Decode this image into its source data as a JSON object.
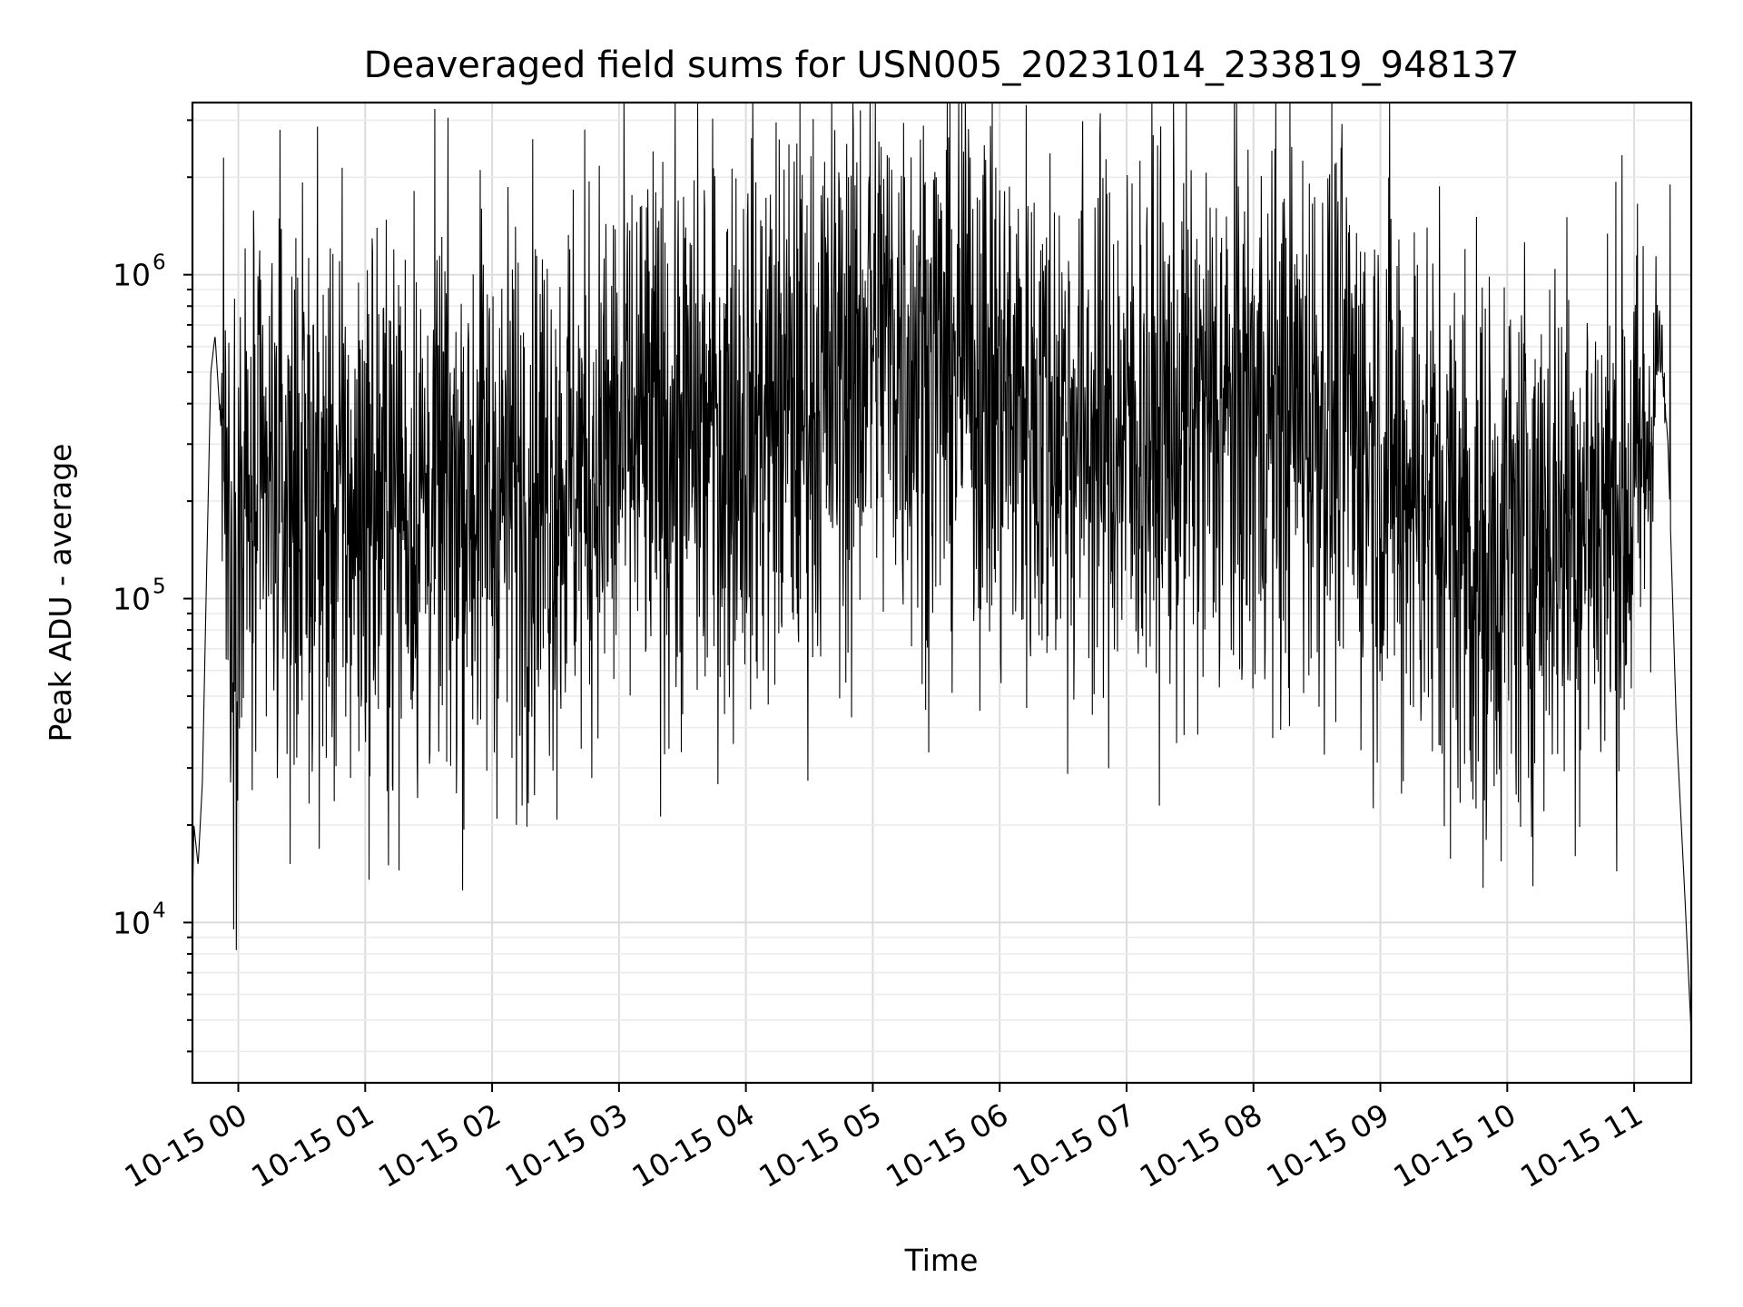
{
  "chart_data": {
    "type": "line",
    "title": "Deaveraged field sums for USN005_20231014_233819_948137",
    "xlabel": "Time",
    "ylabel": "Peak ADU - average",
    "yscale": "log",
    "ylim": [
      3200,
      3400000
    ],
    "xlim": [
      "2023-10-14T23:38:19",
      "2023-10-15T11:27:00"
    ],
    "x_ticks": [
      {
        "t": "2023-10-15T00:00:00",
        "label": "10-15 00"
      },
      {
        "t": "2023-10-15T01:00:00",
        "label": "10-15 01"
      },
      {
        "t": "2023-10-15T02:00:00",
        "label": "10-15 02"
      },
      {
        "t": "2023-10-15T03:00:00",
        "label": "10-15 03"
      },
      {
        "t": "2023-10-15T04:00:00",
        "label": "10-15 04"
      },
      {
        "t": "2023-10-15T05:00:00",
        "label": "10-15 05"
      },
      {
        "t": "2023-10-15T06:00:00",
        "label": "10-15 06"
      },
      {
        "t": "2023-10-15T07:00:00",
        "label": "10-15 07"
      },
      {
        "t": "2023-10-15T08:00:00",
        "label": "10-15 08"
      },
      {
        "t": "2023-10-15T09:00:00",
        "label": "10-15 09"
      },
      {
        "t": "2023-10-15T10:00:00",
        "label": "10-15 10"
      },
      {
        "t": "2023-10-15T11:00:00",
        "label": "10-15 11"
      }
    ],
    "y_ticks": [
      {
        "value": 10000,
        "base": "10",
        "exp": "4"
      },
      {
        "value": 100000,
        "base": "10",
        "exp": "5"
      },
      {
        "value": 1000000,
        "base": "10",
        "exp": "6"
      }
    ],
    "grid": true,
    "color": "#000000",
    "series": [
      {
        "x": [
          "2023-10-14T23:38",
          "2023-10-14T23:39",
          "2023-10-14T23:41",
          "2023-10-14T23:43",
          "2023-10-14T23:45",
          "2023-10-14T23:47",
          "2023-10-14T23:49",
          "2023-10-14T23:51",
          "2023-10-14T23:53",
          "2023-10-14T23:55",
          "2023-10-14T23:57",
          "2023-10-15T00:00",
          "2023-10-15T00:05",
          "2023-10-15T00:10",
          "2023-10-15T00:15",
          "2023-10-15T00:20",
          "2023-10-15T00:30",
          "2023-10-15T00:40",
          "2023-10-15T00:50",
          "2023-10-15T01:00",
          "2023-10-15T01:15",
          "2023-10-15T01:30",
          "2023-10-15T01:45",
          "2023-10-15T02:00",
          "2023-10-15T02:15",
          "2023-10-15T02:30",
          "2023-10-15T02:45",
          "2023-10-15T03:00",
          "2023-10-15T03:15",
          "2023-10-15T03:30",
          "2023-10-15T03:45",
          "2023-10-15T04:00",
          "2023-10-15T04:15",
          "2023-10-15T04:30",
          "2023-10-15T04:45",
          "2023-10-15T05:00",
          "2023-10-15T05:15",
          "2023-10-15T05:30",
          "2023-10-15T05:45",
          "2023-10-15T06:00",
          "2023-10-15T06:15",
          "2023-10-15T06:30",
          "2023-10-15T06:45",
          "2023-10-15T07:00",
          "2023-10-15T07:15",
          "2023-10-15T07:30",
          "2023-10-15T07:45",
          "2023-10-15T08:00",
          "2023-10-15T08:15",
          "2023-10-15T08:30",
          "2023-10-15T08:45",
          "2023-10-15T09:00",
          "2023-10-15T09:15",
          "2023-10-15T09:30",
          "2023-10-15T09:45",
          "2023-10-15T10:00",
          "2023-10-15T10:15",
          "2023-10-15T10:30",
          "2023-10-15T10:45",
          "2023-10-15T11:00",
          "2023-10-15T11:08",
          "2023-10-15T11:12",
          "2023-10-15T11:16",
          "2023-10-15T11:20",
          "2023-10-15T11:24",
          "2023-10-15T11:27"
        ],
        "y": [
          9000,
          20000,
          15000,
          27000,
          120000,
          500000,
          650000,
          400000,
          300000,
          200000,
          130000,
          160000,
          180000,
          170000,
          200000,
          210000,
          190000,
          200000,
          180000,
          190000,
          200000,
          200000,
          210000,
          210000,
          220000,
          230000,
          250000,
          290000,
          300000,
          310000,
          330000,
          360000,
          380000,
          400000,
          500000,
          650000,
          580000,
          500000,
          520000,
          420000,
          380000,
          360000,
          330000,
          320000,
          330000,
          340000,
          350000,
          360000,
          380000,
          380000,
          350000,
          280000,
          240000,
          180000,
          130000,
          140000,
          170000,
          180000,
          190000,
          200000,
          350000,
          650000,
          300000,
          40000,
          12000,
          4500
        ],
        "spread": [
          0,
          0,
          0,
          0,
          0,
          0,
          0,
          0,
          0.3,
          0.4,
          0.45,
          0.45,
          0.45,
          0.45,
          0.45,
          0.45,
          0.45,
          0.45,
          0.45,
          0.45,
          0.45,
          0.45,
          0.45,
          0.45,
          0.45,
          0.45,
          0.45,
          0.45,
          0.45,
          0.45,
          0.45,
          0.45,
          0.45,
          0.45,
          0.45,
          0.45,
          0.45,
          0.45,
          0.45,
          0.45,
          0.45,
          0.45,
          0.45,
          0.45,
          0.45,
          0.45,
          0.45,
          0.45,
          0.45,
          0.45,
          0.45,
          0.45,
          0.45,
          0.45,
          0.45,
          0.45,
          0.45,
          0.45,
          0.45,
          0.45,
          0.35,
          0.1,
          0,
          0,
          0,
          0
        ]
      }
    ],
    "spikes": [
      {
        "t": "2023-10-14T23:53",
        "y": 2300000
      },
      {
        "t": "2023-10-15T00:28",
        "y": 980000
      },
      {
        "t": "2023-10-15T00:40",
        "y": 35000
      },
      {
        "t": "2023-10-15T01:55",
        "y": 1600000
      },
      {
        "t": "2023-10-15T02:50",
        "y": 37000
      },
      {
        "t": "2023-10-15T03:50",
        "y": 44000
      },
      {
        "t": "2023-10-15T04:50",
        "y": 43000
      },
      {
        "t": "2023-10-15T04:58",
        "y": 1900000
      },
      {
        "t": "2023-10-15T05:15",
        "y": 2000000
      },
      {
        "t": "2023-10-15T05:30",
        "y": 2000000
      },
      {
        "t": "2023-10-15T05:43",
        "y": 2400000
      },
      {
        "t": "2023-10-15T05:46",
        "y": 2300000
      },
      {
        "t": "2023-10-15T07:45",
        "y": 1300000
      },
      {
        "t": "2023-10-15T08:45",
        "y": 1350000
      },
      {
        "t": "2023-10-15T09:10",
        "y": 25000
      },
      {
        "t": "2023-10-15T09:40",
        "y": 1200000
      },
      {
        "t": "2023-10-15T09:50",
        "y": 18000
      },
      {
        "t": "2023-10-15T10:10",
        "y": 28000
      },
      {
        "t": "2023-10-15T11:17",
        "y": 1900000
      }
    ]
  }
}
